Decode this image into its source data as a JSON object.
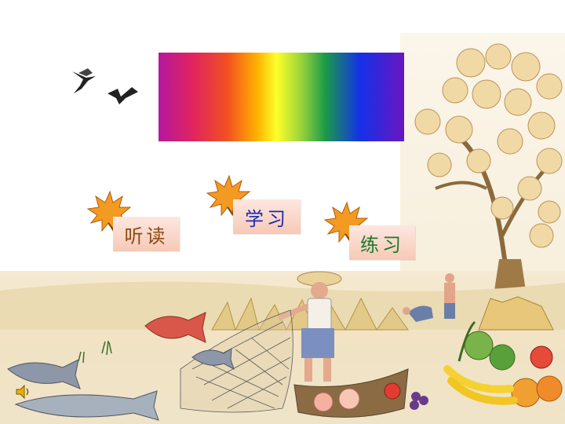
{
  "slide": {
    "title_banner": "",
    "menu": [
      {
        "label": "听读",
        "icon": "maple-leaf-icon",
        "color": "#8b4a12"
      },
      {
        "label": "学习",
        "icon": "maple-leaf-icon",
        "color": "#1c2bb0"
      },
      {
        "label": "练习",
        "icon": "maple-leaf-icon",
        "color": "#1a7b2a"
      }
    ],
    "audio_icon": "speaker-icon",
    "decorations": [
      "flying-birds",
      "autumn-tree",
      "farmer-with-net",
      "fish",
      "fruit-basket",
      "harvest-field"
    ]
  },
  "colors": {
    "rainbow_start": "#b5179e",
    "rainbow_end": "#6a16c0",
    "label_bg": "#f7c9b6"
  }
}
